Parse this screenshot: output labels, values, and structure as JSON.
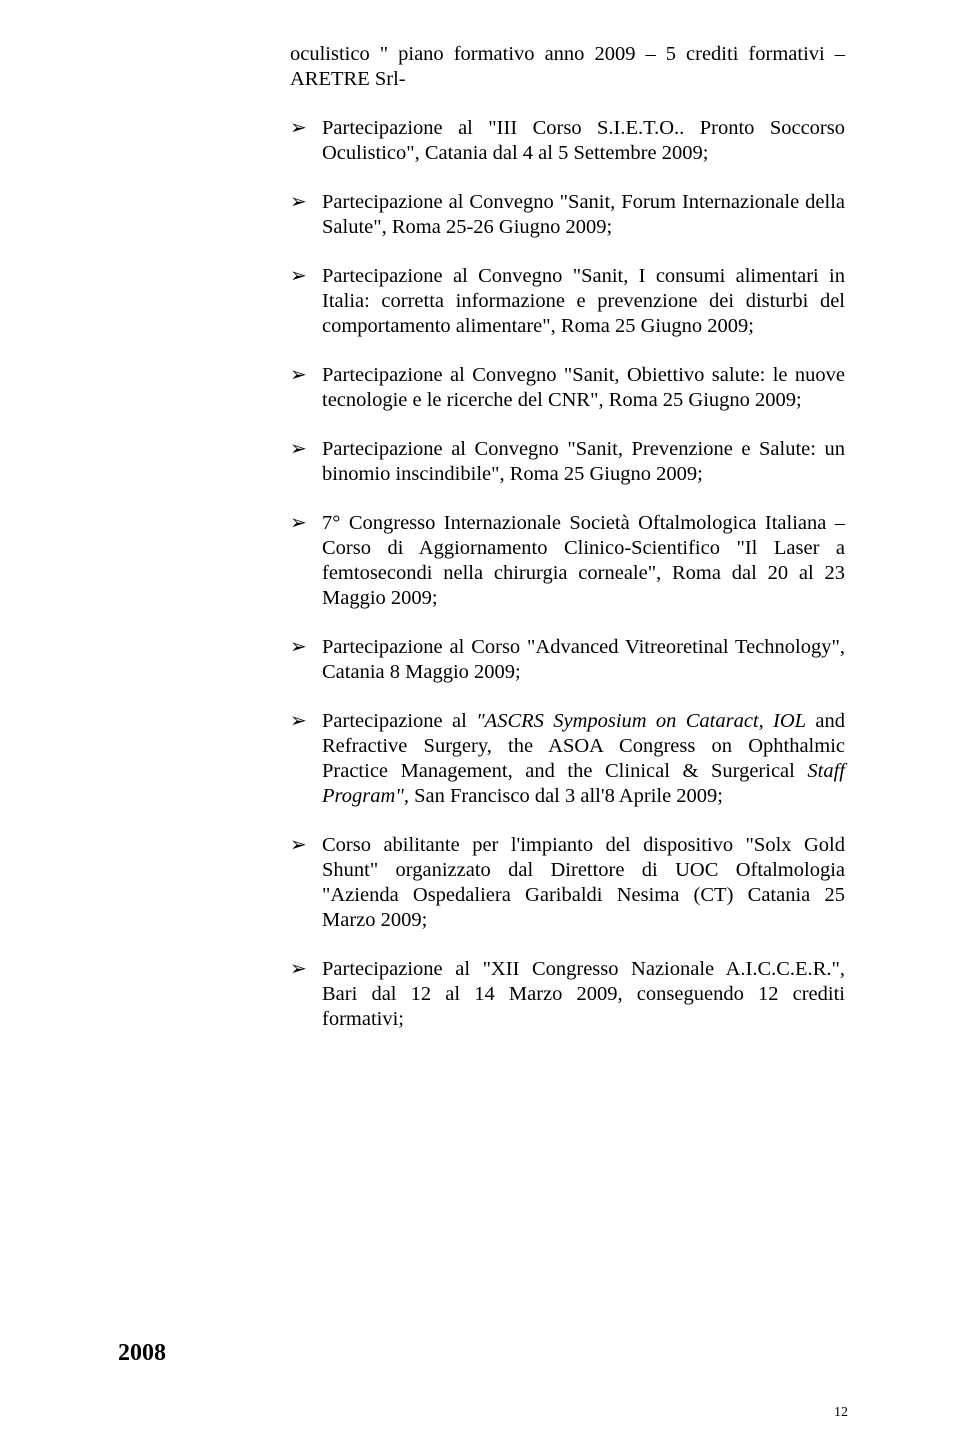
{
  "intro": "oculistico \" piano formativo anno 2009 – 5 crediti formativi – ARETRE Srl-",
  "items": [
    "Partecipazione al \"III Corso S.I.E.T.O.. Pronto Soccorso Oculistico\", Catania dal 4 al 5 Settembre 2009;",
    "Partecipazione al Convegno \"Sanit, Forum Internazionale della Salute\", Roma 25-26 Giugno 2009;",
    "Partecipazione al Convegno \"Sanit, I consumi alimentari in Italia: corretta informazione e prevenzione dei disturbi del comportamento alimentare\", Roma 25 Giugno 2009;",
    "Partecipazione al Convegno \"Sanit, Obiettivo salute: le nuove tecnologie e le ricerche del CNR\", Roma 25 Giugno 2009;",
    "Partecipazione al Convegno \"Sanit, Prevenzione e Salute: un binomio inscindibile\", Roma 25 Giugno 2009;",
    "7° Congresso Internazionale Società Oftalmologica Italiana – Corso di Aggiornamento Clinico-Scientifico \"Il Laser a femtosecondi nella  chirurgia corneale\", Roma dal 20 al  23 Maggio 2009;",
    "Partecipazione al Corso \"Advanced Vitreoretinal Technology\", Catania 8 Maggio 2009;",
    "",
    "Corso abilitante per l'impianto del dispositivo \"Solx Gold Shunt\" organizzato dal Direttore di UOC Oftalmologia \"Azienda Ospedaliera Garibaldi Nesima (CT) Catania 25 Marzo 2009;",
    "Partecipazione al \"XII Congresso Nazionale A.I.C.C.E.R.\", Bari dal 12 al 14 Marzo 2009, conseguendo 12 crediti formativi;"
  ],
  "item7_pre": "Partecipazione al ",
  "item7_italic1": "\"ASCRS Symposium on Cataract, IOL",
  "item7_mid": " and Refractive Surgery, the ASOA Congress on Ophthalmic Practice Management, and the Clinical & Surgerical ",
  "item7_italic2": "Staff Program\", ",
  "item7_post": "San Francisco dal 3 all'8 Aprile 2009;",
  "year": "2008",
  "pagenum": "12"
}
